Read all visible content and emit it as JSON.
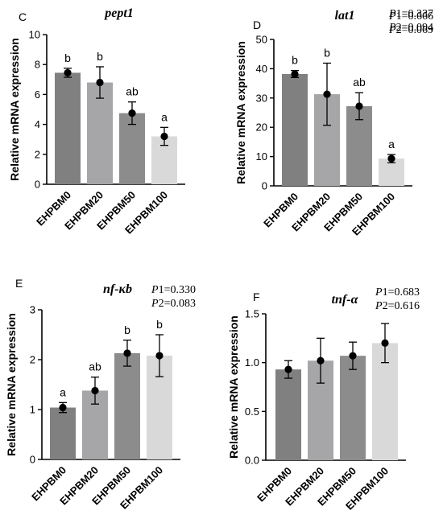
{
  "chart_data": [
    {
      "type": "bar",
      "panel": "C",
      "title": "pept1",
      "p1": "=0.337",
      "p2": "=0.094",
      "ylabel": "Relative mRNA expression",
      "categories": [
        "EHPBM0",
        "EHPBM20",
        "EHPBM50",
        "EHPBM100"
      ],
      "values": [
        7.45,
        6.8,
        4.75,
        3.2
      ],
      "errors": [
        0.3,
        1.05,
        0.75,
        0.6
      ],
      "letters": [
        "b",
        "b",
        "ab",
        "a"
      ],
      "ylim": [
        0,
        10
      ],
      "yticks": [
        "0",
        "2",
        "4",
        "6",
        "8",
        "10"
      ],
      "colors": [
        "#808080",
        "#a6a6a8",
        "#8c8c8c",
        "#d9d9d9"
      ]
    },
    {
      "type": "bar",
      "panel": "D",
      "title": "lat1",
      "p1": "=0.666",
      "p2": "=0.069",
      "ylabel": "Relative mRNA expression",
      "categories": [
        "EHPBM0",
        "EHPBM20",
        "EHPBM50",
        "EHPBM100"
      ],
      "values": [
        38.2,
        31.3,
        27.2,
        9.3
      ],
      "errors": [
        1.2,
        10.6,
        4.6,
        1.4
      ],
      "letters": [
        "b",
        "b",
        "ab",
        "a"
      ],
      "ylim": [
        0,
        50
      ],
      "yticks": [
        "0",
        "10",
        "20",
        "30",
        "40",
        "50"
      ],
      "colors": [
        "#808080",
        "#a6a6a8",
        "#8c8c8c",
        "#d9d9d9"
      ]
    },
    {
      "type": "bar",
      "panel": "E",
      "title": "nf-κb",
      "p1": "=0.330",
      "p2": "=0.083",
      "ylabel": "Relative mRNA expression",
      "categories": [
        "EHPBM0",
        "EHPBM20",
        "EHPBM50",
        "EHPBM100"
      ],
      "values": [
        1.04,
        1.38,
        2.13,
        2.08
      ],
      "errors": [
        0.1,
        0.27,
        0.26,
        0.42
      ],
      "letters": [
        "a",
        "ab",
        "b",
        "b"
      ],
      "ylim": [
        0,
        3
      ],
      "yticks": [
        "0",
        "1",
        "2",
        "3"
      ],
      "colors": [
        "#808080",
        "#a6a6a8",
        "#8c8c8c",
        "#d9d9d9"
      ]
    },
    {
      "type": "bar",
      "panel": "F",
      "title": "tnf-α",
      "p1": "=0.683",
      "p2": "=0.616",
      "ylabel": "Relative mRNA expression",
      "categories": [
        "EHPBM0",
        "EHPBM20",
        "EHPBM50",
        "EHPBM100"
      ],
      "values": [
        0.93,
        1.02,
        1.07,
        1.2
      ],
      "errors": [
        0.09,
        0.23,
        0.14,
        0.2
      ],
      "letters": [
        "",
        "",
        "",
        ""
      ],
      "ylim": [
        0,
        1.5
      ],
      "yticks": [
        "0.0",
        "0.5",
        "1.0",
        "1.5"
      ],
      "colors": [
        "#808080",
        "#a6a6a8",
        "#8c8c8c",
        "#d9d9d9"
      ]
    }
  ]
}
